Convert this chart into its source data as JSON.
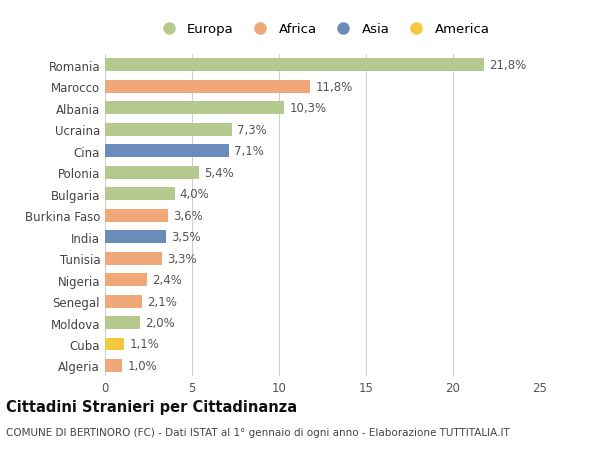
{
  "countries": [
    "Romania",
    "Marocco",
    "Albania",
    "Ucraina",
    "Cina",
    "Polonia",
    "Bulgaria",
    "Burkina Faso",
    "India",
    "Tunisia",
    "Nigeria",
    "Senegal",
    "Moldova",
    "Cuba",
    "Algeria"
  ],
  "values": [
    21.8,
    11.8,
    10.3,
    7.3,
    7.1,
    5.4,
    4.0,
    3.6,
    3.5,
    3.3,
    2.4,
    2.1,
    2.0,
    1.1,
    1.0
  ],
  "labels": [
    "21,8%",
    "11,8%",
    "10,3%",
    "7,3%",
    "7,1%",
    "5,4%",
    "4,0%",
    "3,6%",
    "3,5%",
    "3,3%",
    "2,4%",
    "2,1%",
    "2,0%",
    "1,1%",
    "1,0%"
  ],
  "continents": [
    "Europa",
    "Africa",
    "Europa",
    "Europa",
    "Asia",
    "Europa",
    "Europa",
    "Africa",
    "Asia",
    "Africa",
    "Africa",
    "Africa",
    "Europa",
    "America",
    "Africa"
  ],
  "colors": {
    "Europa": "#b5c98e",
    "Africa": "#f0a878",
    "Asia": "#6b8cba",
    "America": "#f5c842"
  },
  "legend_order": [
    "Europa",
    "Africa",
    "Asia",
    "America"
  ],
  "xlim": [
    0,
    25
  ],
  "xticks": [
    0,
    5,
    10,
    15,
    20,
    25
  ],
  "title": "Cittadini Stranieri per Cittadinanza",
  "subtitle": "COMUNE DI BERTINORO (FC) - Dati ISTAT al 1° gennaio di ogni anno - Elaborazione TUTTITALIA.IT",
  "bg_color": "#ffffff",
  "grid_color": "#d0d0d0",
  "bar_height": 0.6,
  "label_fontsize": 8.5,
  "tick_fontsize": 8.5,
  "title_fontsize": 10.5,
  "subtitle_fontsize": 7.5
}
